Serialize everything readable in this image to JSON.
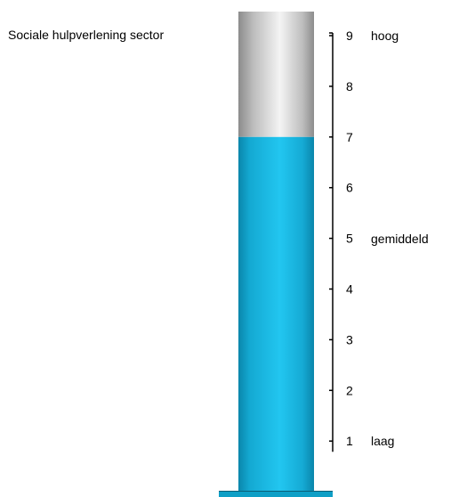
{
  "chart_data": {
    "type": "bar",
    "title": "Sociale hulpverlening sector",
    "value": 7,
    "ylim": [
      0,
      9
    ],
    "ticks": [
      1,
      2,
      3,
      4,
      5,
      6,
      7,
      8,
      9
    ],
    "band_labels": [
      {
        "value": 9,
        "text": "hoog"
      },
      {
        "value": 5,
        "text": "gemiddeld"
      },
      {
        "value": 1,
        "text": "laag"
      }
    ],
    "colors": {
      "fill": "#12b3dc",
      "empty": "#c8c8c8",
      "axis": "#000000"
    }
  }
}
